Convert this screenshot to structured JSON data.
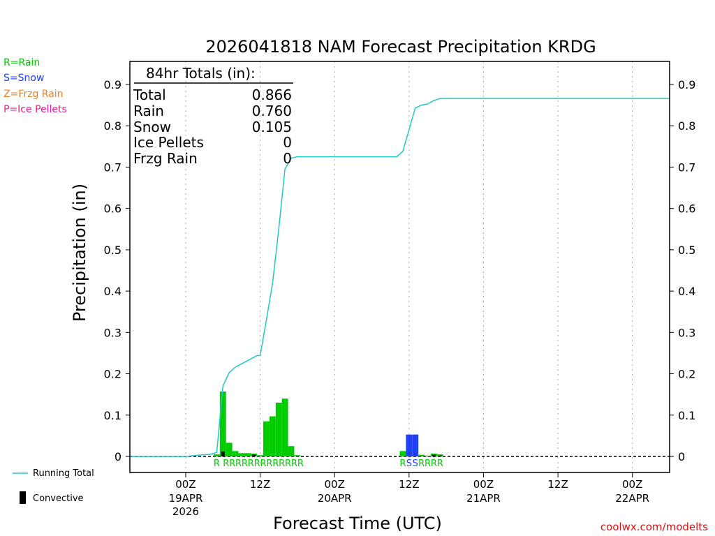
{
  "chart_data": {
    "type": "bar",
    "title": "2026041818 NAM Forecast Precipitation KRDG",
    "xlabel": "Forecast Time (UTC)",
    "ylabel": "Precipitation (in)",
    "ylim": [
      -0.04,
      0.96
    ],
    "y_ticks": [
      0,
      0.1,
      0.2,
      0.3,
      0.4,
      0.5,
      0.6,
      0.7,
      0.8,
      0.9
    ],
    "y_tick_labels": [
      "0",
      "0.1",
      "0.2",
      "0.3",
      "0.4",
      "0.5",
      "0.6",
      "0.7",
      "0.8",
      "0.9"
    ],
    "x_unit": "hours from 18Z 18APR",
    "xlim": [
      -3,
      84
    ],
    "x_ticks": [
      {
        "hour": 6,
        "label": "00Z",
        "date": "19APR",
        "year": "2026"
      },
      {
        "hour": 18,
        "label": "12Z",
        "date": "",
        "year": ""
      },
      {
        "hour": 30,
        "label": "00Z",
        "date": "20APR",
        "year": ""
      },
      {
        "hour": 42,
        "label": "12Z",
        "date": "",
        "year": ""
      },
      {
        "hour": 54,
        "label": "00Z",
        "date": "21APR",
        "year": ""
      },
      {
        "hour": 66,
        "label": "12Z",
        "date": "",
        "year": ""
      },
      {
        "hour": 78,
        "label": "00Z",
        "date": "22APR",
        "year": ""
      }
    ],
    "bars": [
      {
        "hour": 11,
        "value": 0.005,
        "type": "R",
        "convective": 0.0
      },
      {
        "hour": 12,
        "value": 0.157,
        "type": "R",
        "convective": 0.012
      },
      {
        "hour": 13,
        "value": 0.033,
        "type": "R",
        "convective": 0.0
      },
      {
        "hour": 14,
        "value": 0.013,
        "type": "R",
        "convective": 0.0
      },
      {
        "hour": 15,
        "value": 0.008,
        "type": "R",
        "convective": 0.0
      },
      {
        "hour": 16,
        "value": 0.008,
        "type": "R",
        "convective": 0.0
      },
      {
        "hour": 17,
        "value": 0.007,
        "type": "R",
        "convective": 0.005
      },
      {
        "hour": 18,
        "value": 0.003,
        "type": "R",
        "convective": 0.0
      },
      {
        "hour": 19,
        "value": 0.085,
        "type": "R",
        "convective": 0.0
      },
      {
        "hour": 20,
        "value": 0.097,
        "type": "R",
        "convective": 0.0
      },
      {
        "hour": 21,
        "value": 0.13,
        "type": "R",
        "convective": 0.0
      },
      {
        "hour": 22,
        "value": 0.14,
        "type": "R",
        "convective": 0.0
      },
      {
        "hour": 23,
        "value": 0.025,
        "type": "R",
        "convective": 0.0
      },
      {
        "hour": 24,
        "value": 0.003,
        "type": "R",
        "convective": 0.0
      },
      {
        "hour": 41,
        "value": 0.013,
        "type": "R",
        "convective": 0.0
      },
      {
        "hour": 42,
        "value": 0.053,
        "type": "S",
        "convective": 0.0
      },
      {
        "hour": 43,
        "value": 0.053,
        "type": "S",
        "convective": 0.0
      },
      {
        "hour": 44,
        "value": 0.004,
        "type": "R",
        "convective": 0.0
      },
      {
        "hour": 45,
        "value": 0.002,
        "type": "R",
        "convective": 0.0
      },
      {
        "hour": 46,
        "value": 0.007,
        "type": "R",
        "convective": 0.004
      },
      {
        "hour": 47,
        "value": 0.005,
        "type": "R",
        "convective": 0.002
      }
    ],
    "running_total": [
      {
        "hour": -3,
        "value": 0.0
      },
      {
        "hour": 6,
        "value": 0.0
      },
      {
        "hour": 8,
        "value": 0.003
      },
      {
        "hour": 10,
        "value": 0.005
      },
      {
        "hour": 11,
        "value": 0.01
      },
      {
        "hour": 12,
        "value": 0.17
      },
      {
        "hour": 13,
        "value": 0.203
      },
      {
        "hour": 14,
        "value": 0.216
      },
      {
        "hour": 15,
        "value": 0.224
      },
      {
        "hour": 16,
        "value": 0.232
      },
      {
        "hour": 17,
        "value": 0.24
      },
      {
        "hour": 17.5,
        "value": 0.244
      },
      {
        "hour": 18,
        "value": 0.244
      },
      {
        "hour": 19,
        "value": 0.33
      },
      {
        "hour": 20,
        "value": 0.42
      },
      {
        "hour": 21,
        "value": 0.55
      },
      {
        "hour": 22,
        "value": 0.695
      },
      {
        "hour": 23,
        "value": 0.722
      },
      {
        "hour": 24,
        "value": 0.725
      },
      {
        "hour": 40,
        "value": 0.725
      },
      {
        "hour": 41,
        "value": 0.738
      },
      {
        "hour": 42,
        "value": 0.79
      },
      {
        "hour": 43,
        "value": 0.843
      },
      {
        "hour": 44,
        "value": 0.85
      },
      {
        "hour": 45,
        "value": 0.853
      },
      {
        "hour": 46,
        "value": 0.861
      },
      {
        "hour": 47,
        "value": 0.866
      },
      {
        "hour": 84,
        "value": 0.866
      }
    ],
    "type_label_hours": [
      11,
      12.5,
      13.5,
      14.5,
      15.5,
      16.5,
      17.5,
      18.5,
      19.5,
      20.5,
      21.5,
      22.5,
      23.5,
      24.5,
      41,
      42,
      43,
      44,
      45,
      46,
      47
    ],
    "type_label_text": [
      "R",
      "R",
      "R",
      "R",
      "R",
      "R",
      "R",
      "R",
      "R",
      "R",
      "R",
      "R",
      "R",
      "R",
      "R",
      "S",
      "S",
      "R",
      "R",
      "R",
      "R"
    ],
    "type_label_kinds": [
      "R",
      "R",
      "R",
      "R",
      "R",
      "R",
      "R",
      "R",
      "R",
      "R",
      "R",
      "R",
      "R",
      "R",
      "R",
      "S",
      "S",
      "R",
      "R",
      "R",
      "R"
    ],
    "totals": {
      "heading": "84hr Totals (in):",
      "rows": [
        {
          "label": "Total",
          "value": "0.866"
        },
        {
          "label": "Rain",
          "value": "0.760"
        },
        {
          "label": "Snow",
          "value": "0.105"
        },
        {
          "label": "Ice Pellets",
          "value": "0"
        },
        {
          "label": "Frzg Rain",
          "value": "0"
        }
      ]
    },
    "colors": {
      "rain": "#00cc00",
      "snow": "#2040f8",
      "frzg": "#f08020",
      "ice": "#e81e8c",
      "running": "#20c8c8",
      "convective": "#000000"
    }
  },
  "type_legend": [
    {
      "text": "R=Rain",
      "color": "#00cc00"
    },
    {
      "text": "S=Snow",
      "color": "#2040f8"
    },
    {
      "text": "Z=Frzg Rain",
      "color": "#f08020"
    },
    {
      "text": "P=Ice Pellets",
      "color": "#e81e8c"
    }
  ],
  "bottom_legend": {
    "running_total": "Running Total",
    "convective": "Convective"
  },
  "watermark": "coolwx.com/modelts"
}
